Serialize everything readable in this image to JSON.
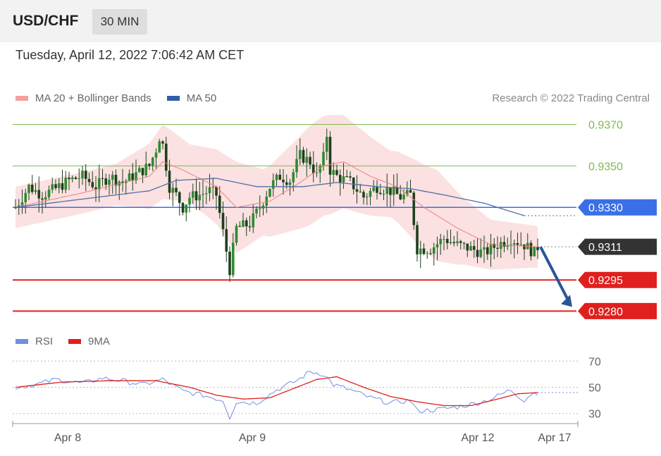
{
  "header": {
    "symbol": "USD/CHF",
    "timeframe": "30 MIN",
    "datetime": "Tuesday, April 12, 2022 7:06:42 AM CET",
    "credit": "Research © 2022 Trading Central"
  },
  "colors": {
    "bollinger": "#f4a9a9",
    "ma20": "#f08080",
    "ma50": "#4f6fa8",
    "candle": "#2e8b2e",
    "candle_dark": "#1f3f1f",
    "support": "#e0201e",
    "pivot": "#3a6fe8",
    "resistance": "#7cbc4a",
    "last_price": "#333333",
    "arrow": "#2a5599",
    "rsi": "#6f8fdf",
    "rsi_ma": "#e0201e"
  },
  "legend": {
    "ma20_label": "MA 20 + Bollinger Bands",
    "ma50_label": "MA 50",
    "rsi_label": "RSI",
    "rsi_ma_label": "9MA"
  },
  "chart_data": [
    {
      "type": "candlestick",
      "title": "USD/CHF",
      "ylim": [
        0.9273,
        0.9379
      ],
      "x_ticks": [
        "Apr 8",
        "Apr 9",
        "Apr 12",
        "Apr 17"
      ],
      "levels": [
        {
          "value": 0.937,
          "label": "0.9370",
          "kind": "resistance"
        },
        {
          "value": 0.935,
          "label": "0.9350",
          "kind": "resistance"
        },
        {
          "value": 0.933,
          "label": "0.9330",
          "kind": "pivot"
        },
        {
          "value": 0.9311,
          "label": "0.9311",
          "kind": "last"
        },
        {
          "value": 0.9295,
          "label": "0.9295",
          "kind": "support"
        },
        {
          "value": 0.928,
          "label": "0.9280",
          "kind": "support"
        }
      ],
      "forecast": {
        "from": 0.9311,
        "to": 0.928
      },
      "close_anchors": [
        [
          0,
          0.933
        ],
        [
          4,
          0.934
        ],
        [
          8,
          0.9336
        ],
        [
          12,
          0.9339
        ],
        [
          16,
          0.9343
        ],
        [
          20,
          0.9345
        ],
        [
          24,
          0.934
        ],
        [
          28,
          0.9345
        ],
        [
          32,
          0.9342
        ],
        [
          36,
          0.9346
        ],
        [
          40,
          0.935
        ],
        [
          42,
          0.9358
        ],
        [
          43,
          0.9364
        ],
        [
          44,
          0.936
        ],
        [
          46,
          0.934
        ],
        [
          48,
          0.9336
        ],
        [
          50,
          0.933
        ],
        [
          52,
          0.9335
        ],
        [
          55,
          0.9336
        ],
        [
          58,
          0.9338
        ],
        [
          60,
          0.9336
        ],
        [
          64,
          0.93
        ],
        [
          66,
          0.932
        ],
        [
          70,
          0.9322
        ],
        [
          73,
          0.933
        ],
        [
          76,
          0.934
        ],
        [
          79,
          0.9345
        ],
        [
          82,
          0.9343
        ],
        [
          85,
          0.9355
        ],
        [
          88,
          0.9352
        ],
        [
          90,
          0.9345
        ],
        [
          92,
          0.9354
        ],
        [
          93,
          0.9365
        ],
        [
          94,
          0.9348
        ],
        [
          96,
          0.9345
        ],
        [
          100,
          0.9342
        ],
        [
          104,
          0.9335
        ],
        [
          108,
          0.934
        ],
        [
          112,
          0.9338
        ],
        [
          115,
          0.9335
        ],
        [
          118,
          0.9336
        ],
        [
          120,
          0.931
        ],
        [
          124,
          0.931
        ],
        [
          128,
          0.9315
        ],
        [
          132,
          0.9312
        ],
        [
          136,
          0.931
        ],
        [
          140,
          0.9308
        ],
        [
          144,
          0.9312
        ],
        [
          148,
          0.9315
        ],
        [
          152,
          0.9312
        ],
        [
          155,
          0.9308
        ],
        [
          156,
          0.9311
        ]
      ],
      "ma20_anchors": [
        [
          0,
          0.933
        ],
        [
          20,
          0.9337
        ],
        [
          40,
          0.9345
        ],
        [
          44,
          0.9352
        ],
        [
          50,
          0.9348
        ],
        [
          60,
          0.934
        ],
        [
          66,
          0.933
        ],
        [
          76,
          0.9333
        ],
        [
          85,
          0.9342
        ],
        [
          92,
          0.935
        ],
        [
          98,
          0.9352
        ],
        [
          106,
          0.9345
        ],
        [
          114,
          0.934
        ],
        [
          122,
          0.933
        ],
        [
          132,
          0.932
        ],
        [
          142,
          0.9312
        ],
        [
          156,
          0.9311
        ]
      ],
      "ma50_anchors": [
        [
          0,
          0.933
        ],
        [
          20,
          0.9334
        ],
        [
          40,
          0.9338
        ],
        [
          48,
          0.9343
        ],
        [
          60,
          0.9344
        ],
        [
          72,
          0.934
        ],
        [
          86,
          0.934
        ],
        [
          96,
          0.9342
        ],
        [
          108,
          0.934
        ],
        [
          118,
          0.9339
        ],
        [
          128,
          0.9336
        ],
        [
          140,
          0.9332
        ],
        [
          148,
          0.9328
        ],
        [
          152,
          0.9326
        ]
      ],
      "bb_halfwidth_anchors": [
        [
          0,
          0.001
        ],
        [
          30,
          0.001
        ],
        [
          44,
          0.0018
        ],
        [
          52,
          0.0014
        ],
        [
          60,
          0.0018
        ],
        [
          66,
          0.0022
        ],
        [
          74,
          0.0016
        ],
        [
          88,
          0.0024
        ],
        [
          94,
          0.0024
        ],
        [
          104,
          0.002
        ],
        [
          112,
          0.0016
        ],
        [
          120,
          0.002
        ],
        [
          126,
          0.0022
        ],
        [
          134,
          0.0016
        ],
        [
          142,
          0.0012
        ],
        [
          156,
          0.001
        ]
      ]
    },
    {
      "type": "line",
      "title": "RSI",
      "ylim": [
        25,
        75
      ],
      "y_ticks": [
        70,
        50,
        30
      ],
      "series": [
        {
          "name": "RSI",
          "anchors": [
            [
              0,
              50
            ],
            [
              6,
              52
            ],
            [
              12,
              56
            ],
            [
              20,
              53
            ],
            [
              26,
              57
            ],
            [
              32,
              55
            ],
            [
              38,
              52
            ],
            [
              44,
              56
            ],
            [
              50,
              47
            ],
            [
              56,
              44
            ],
            [
              62,
              40
            ],
            [
              64,
              27
            ],
            [
              66,
              39
            ],
            [
              72,
              38
            ],
            [
              78,
              48
            ],
            [
              84,
              55
            ],
            [
              88,
              62
            ],
            [
              92,
              60
            ],
            [
              95,
              52
            ],
            [
              100,
              48
            ],
            [
              106,
              42
            ],
            [
              112,
              38
            ],
            [
              118,
              40
            ],
            [
              120,
              32
            ],
            [
              126,
              33
            ],
            [
              132,
              35
            ],
            [
              138,
              38
            ],
            [
              142,
              41
            ],
            [
              148,
              48
            ],
            [
              152,
              40
            ],
            [
              154,
              45
            ],
            [
              156,
              46
            ]
          ]
        },
        {
          "name": "9MA",
          "anchors": [
            [
              0,
              50
            ],
            [
              14,
              54
            ],
            [
              28,
              55
            ],
            [
              42,
              55
            ],
            [
              52,
              50
            ],
            [
              60,
              44
            ],
            [
              68,
              41
            ],
            [
              76,
              42
            ],
            [
              84,
              50
            ],
            [
              90,
              56
            ],
            [
              96,
              58
            ],
            [
              104,
              50
            ],
            [
              112,
              43
            ],
            [
              120,
              39
            ],
            [
              128,
              36
            ],
            [
              136,
              36
            ],
            [
              144,
              41
            ],
            [
              150,
              45
            ],
            [
              156,
              46
            ]
          ]
        }
      ]
    }
  ]
}
